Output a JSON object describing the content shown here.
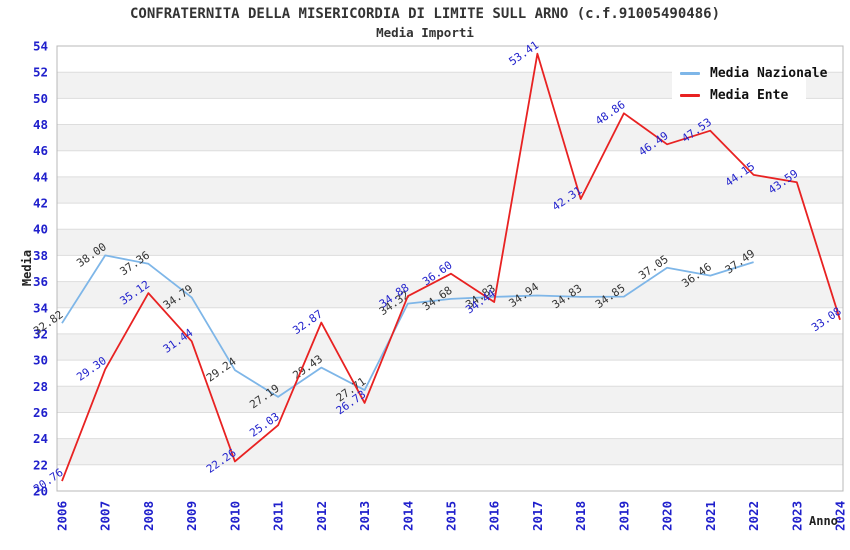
{
  "header": {
    "title": "CONFRATERNITA DELLA MISERICORDIA DI LIMITE SULL ARNO (c.f.91005490486)",
    "subtitle": "Media Importi"
  },
  "legend": {
    "items": [
      {
        "label": "Media Nazionale",
        "color": "#7eb6e8"
      },
      {
        "label": "Media Ente",
        "color": "#e82222"
      }
    ]
  },
  "chart_data": {
    "type": "line",
    "title": "CONFRATERNITA DELLA MISERICORDIA DI LIMITE SULL ARNO (c.f.91005490486)",
    "subtitle": "Media Importi",
    "xlabel": "Anno",
    "ylabel": "Media",
    "ylim": [
      20,
      54
    ],
    "ytick_step": 2,
    "grid": "horizontal-bands",
    "legend_position": "top-right",
    "x": [
      2006,
      2007,
      2008,
      2009,
      2010,
      2011,
      2012,
      2013,
      2014,
      2015,
      2016,
      2017,
      2018,
      2019,
      2020,
      2021,
      2022,
      2023,
      2024
    ],
    "series": [
      {
        "name": "Media Nazionale",
        "color": "#7eb6e8",
        "label_color": "#333333",
        "values": [
          32.82,
          38.0,
          37.36,
          34.79,
          29.24,
          27.19,
          29.43,
          27.71,
          34.32,
          34.68,
          34.83,
          34.94,
          34.83,
          34.85,
          37.05,
          36.46,
          37.49,
          null,
          null
        ]
      },
      {
        "name": "Media Ente",
        "color": "#e82222",
        "label_color": "#2222cc",
        "values": [
          20.76,
          29.3,
          35.12,
          31.44,
          22.26,
          25.03,
          32.87,
          26.73,
          34.88,
          36.6,
          34.44,
          53.41,
          42.31,
          48.86,
          46.49,
          47.53,
          44.15,
          43.59,
          33.08
        ]
      }
    ],
    "style": {
      "band_color": "#f2f2f2",
      "grid_color": "#dddddd",
      "border_color": "#b8b8b8",
      "tick_color": "#2020cc"
    }
  }
}
